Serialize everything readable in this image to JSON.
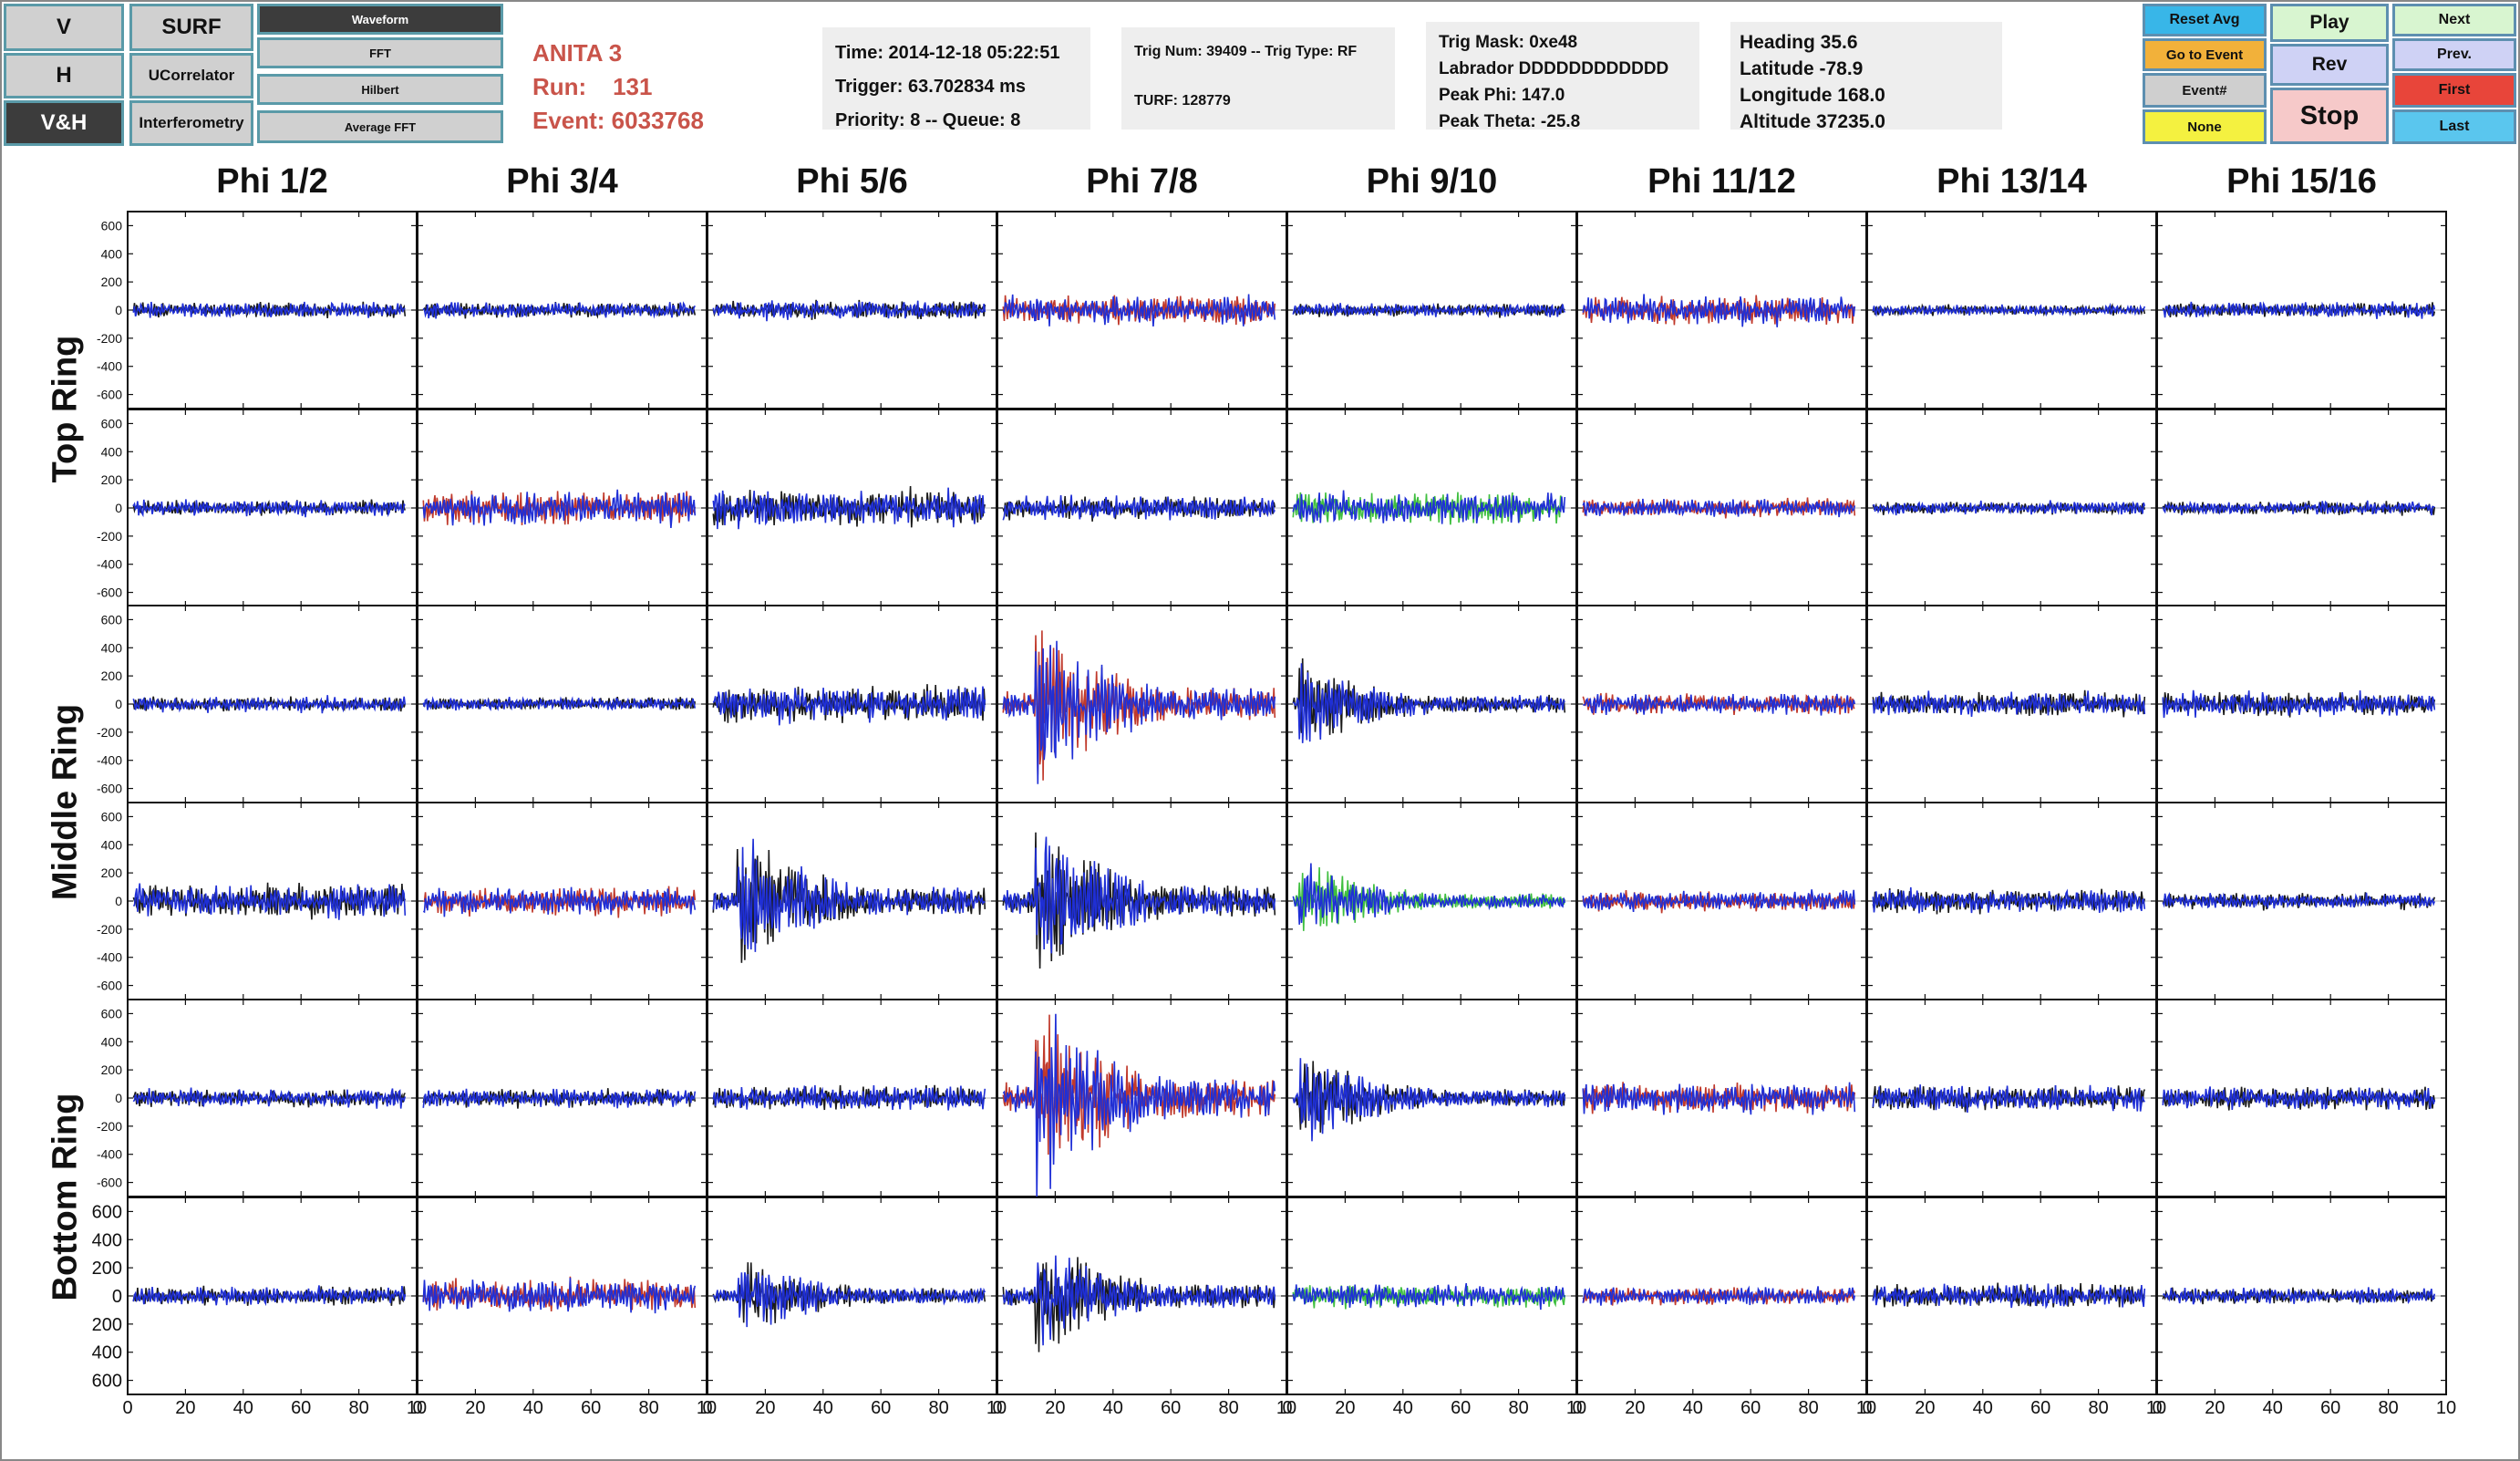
{
  "left_buttons": {
    "v": "V",
    "surf": "SURF",
    "h": "H",
    "ucorrelator": "UCorrelator",
    "vh": "V&H",
    "interferometry": "Interferometry"
  },
  "view_buttons": [
    "Waveform",
    "FFT",
    "Hilbert",
    "Average FFT"
  ],
  "event_header": {
    "experiment": "ANITA 3",
    "run": "Run:    131",
    "event": "Event: 6033768"
  },
  "time_panel": {
    "time": "Time: 2014-12-18 05:22:51",
    "trigger": "Trigger: 63.702834 ms",
    "priority": "Priority: 8 -- Queue: 8"
  },
  "trig_panel": {
    "trig": "Trig Num: 39409 -- Trig Type: RF",
    "turf": "TURF: 128779"
  },
  "mask_panel": {
    "mask": "Trig Mask: 0xe48",
    "labrador": "Labrador DDDDDDDDDDDD",
    "peak_phi": "Peak Phi: 147.0",
    "peak_theta": "Peak Theta: -25.8"
  },
  "gps_panel": {
    "heading": "Heading 35.6",
    "latitude": "Latitude -78.9",
    "longitude": "Longitude 168.0",
    "altitude": "Altitude 37235.0"
  },
  "controls": {
    "reset_avg": "Reset Avg",
    "go_to_event": "Go to Event",
    "event_num": "Event#",
    "none": "None",
    "play": "Play",
    "rev": "Rev",
    "stop": "Stop",
    "next": "Next",
    "prev": "Prev.",
    "first": "First",
    "last": "Last"
  },
  "colors": {
    "event_text": "#c9544a",
    "trace_vpol": "#1a1a1a",
    "trace_hpol": "#1f2fd6",
    "trace_red": "#c0392b",
    "trace_green": "#3fbf3f",
    "reset_avg_bg": "#38b6e8",
    "go_to_event_bg": "#f2b13a",
    "event_num_bg": "#cfcfcf",
    "none_bg": "#f4f140",
    "play_bg": "#d8f5d0",
    "rev_bg": "#cfd2f5",
    "stop_bg": "#f6c9c9",
    "next_bg": "#d8f5d0",
    "prev_bg": "#cfd2f5",
    "first_bg": "#e8453a",
    "last_bg": "#5ac6ee"
  },
  "plot_grid": {
    "phi_columns": [
      "Phi 1/2",
      "Phi 3/4",
      "Phi 5/6",
      "Phi 7/8",
      "Phi 9/10",
      "Phi 11/12",
      "Phi 13/14",
      "Phi 15/16"
    ],
    "ring_labels": [
      "Top Ring",
      "Middle Ring",
      "Bottom Ring"
    ],
    "y_ticks": [
      "600",
      "400",
      "200",
      "0",
      "-200",
      "-400",
      "-600"
    ],
    "y_ticks_last_row": [
      "600",
      "400",
      "200",
      "0",
      "200",
      "400",
      "600"
    ],
    "x_ticks": [
      "0",
      "20",
      "40",
      "60",
      "80",
      "10"
    ],
    "ylim": [
      -700,
      700
    ],
    "xlim": [
      0,
      100
    ]
  },
  "chart_data": {
    "type": "line",
    "description_note": "",
    "x_range": [
      0,
      100
    ],
    "y_range": [
      -700,
      700
    ],
    "panels_amplitude": [
      [
        60,
        60,
        70,
        110,
        50,
        110,
        40,
        60
      ],
      [
        60,
        130,
        140,
        90,
        120,
        70,
        50,
        50
      ],
      [
        60,
        50,
        140,
        600,
        320,
        80,
        90,
        90
      ],
      [
        130,
        110,
        500,
        550,
        280,
        80,
        90,
        60
      ],
      [
        70,
        70,
        90,
        700,
        320,
        120,
        100,
        90
      ],
      [
        70,
        130,
        280,
        420,
        90,
        70,
        90,
        60
      ]
    ],
    "panels_series_colors": [
      [
        "black",
        "black",
        "black",
        "red",
        "black",
        "red",
        "black",
        "black"
      ],
      [
        "black",
        "red",
        "black",
        "black",
        "green",
        "red",
        "black",
        "black"
      ],
      [
        "black",
        "black",
        "black",
        "red",
        "black",
        "red",
        "black",
        "black"
      ],
      [
        "black",
        "red",
        "black",
        "black",
        "green",
        "red",
        "black",
        "black"
      ],
      [
        "black",
        "black",
        "black",
        "red",
        "black",
        "red",
        "black",
        "black"
      ],
      [
        "black",
        "red",
        "black",
        "black",
        "green",
        "red",
        "black",
        "black"
      ]
    ]
  }
}
